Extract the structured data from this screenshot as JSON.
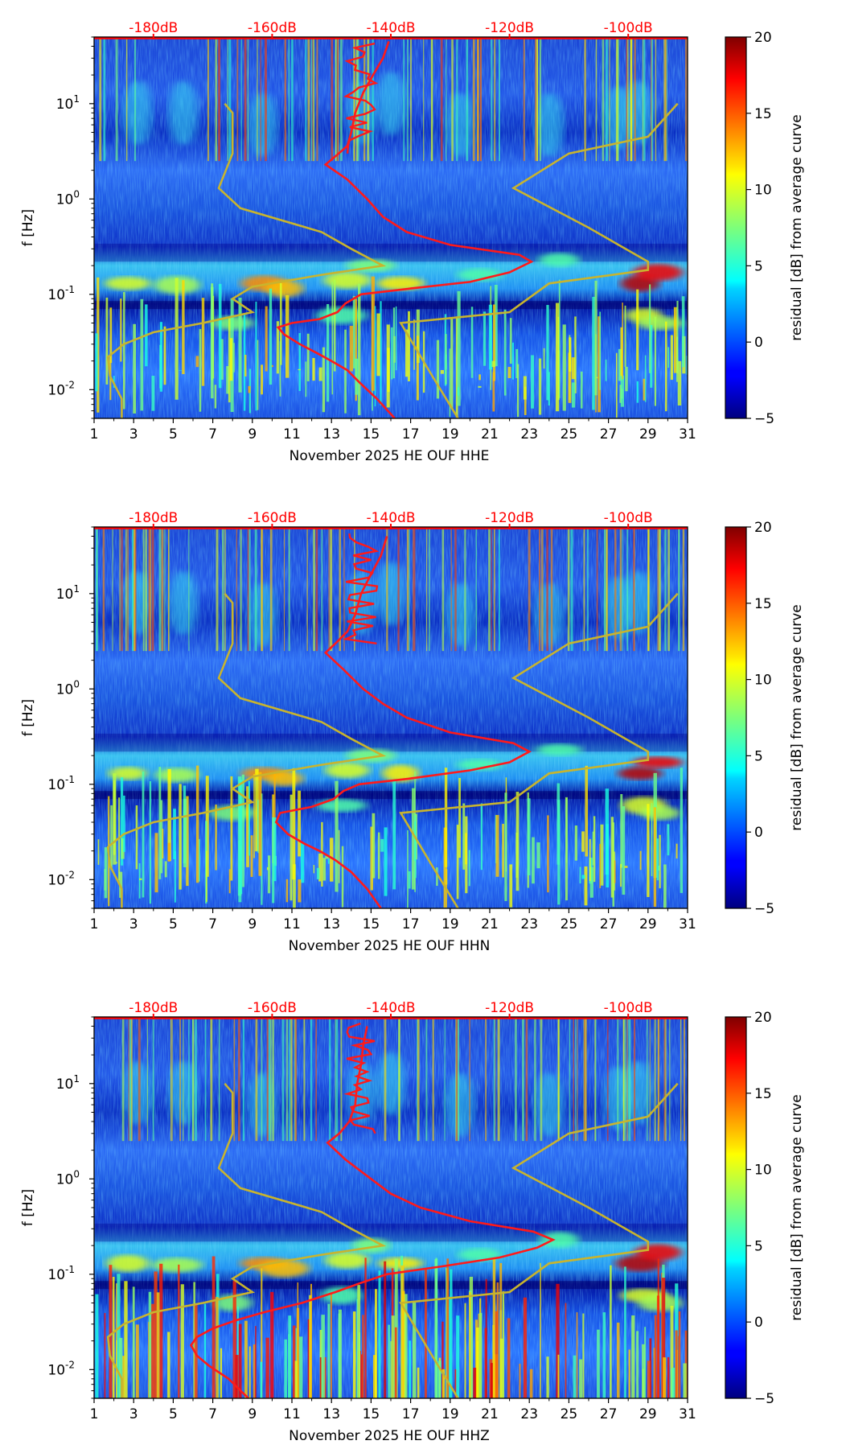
{
  "chart_data": [
    {
      "type": "heatmap",
      "id": "hhe",
      "xlabel": "November 2025 HE OUF  HHE",
      "ylabel": "f [Hz]",
      "x_ticks": [
        "1",
        "3",
        "5",
        "7",
        "9",
        "11",
        "13",
        "15",
        "17",
        "19",
        "21",
        "23",
        "25",
        "27",
        "29",
        "31"
      ],
      "y_ticks": [
        "10^-2",
        "10^-1",
        "10^0",
        "10^1"
      ],
      "db_ticks": [
        "-180dB",
        "-160dB",
        "-140dB",
        "-120dB",
        "-100dB"
      ],
      "colorbar_label": "residual [dB] from average curve",
      "colorbar_ticks": [
        "-5",
        "0",
        "5",
        "10",
        "15",
        "20"
      ],
      "xlim": [
        1,
        31
      ],
      "ylim": [
        0.005,
        50
      ],
      "clim": [
        -5,
        20
      ],
      "red_curve_peak_day": 23.1,
      "red_curve": [
        [
          16.2,
          0.005
        ],
        [
          15.3,
          0.008
        ],
        [
          14.4,
          0.012
        ],
        [
          13.8,
          0.016
        ],
        [
          13.0,
          0.02
        ],
        [
          12.3,
          0.024
        ],
        [
          11.4,
          0.03
        ],
        [
          10.6,
          0.038
        ],
        [
          10.3,
          0.045
        ],
        [
          11,
          0.05
        ],
        [
          12.4,
          0.055
        ],
        [
          13.3,
          0.065
        ],
        [
          13.7,
          0.08
        ],
        [
          14.5,
          0.1
        ],
        [
          17,
          0.115
        ],
        [
          20,
          0.135
        ],
        [
          22,
          0.17
        ],
        [
          23.1,
          0.22
        ],
        [
          22.5,
          0.26
        ],
        [
          19,
          0.33
        ],
        [
          16.8,
          0.45
        ],
        [
          15.6,
          0.65
        ],
        [
          14.8,
          1.0
        ],
        [
          13.8,
          1.6
        ],
        [
          12.7,
          2.3
        ],
        [
          13.2,
          2.8
        ],
        [
          13.8,
          3.6
        ],
        [
          14,
          5
        ],
        [
          14.2,
          8
        ],
        [
          14.6,
          13
        ],
        [
          15.1,
          20
        ],
        [
          15.6,
          30
        ],
        [
          15.9,
          45
        ]
      ],
      "yellow_curve_left": [
        [
          2.4,
          0.005
        ],
        [
          2.4,
          0.008
        ],
        [
          1.8,
          0.014
        ],
        [
          1.7,
          0.022
        ],
        [
          2.5,
          0.03
        ],
        [
          4,
          0.04
        ],
        [
          6.5,
          0.05
        ],
        [
          9,
          0.065
        ],
        [
          8,
          0.09
        ],
        [
          9,
          0.12
        ],
        [
          12.5,
          0.16
        ],
        [
          15.6,
          0.2
        ],
        [
          14,
          0.3
        ],
        [
          12.5,
          0.45
        ],
        [
          8.4,
          0.8
        ],
        [
          7.3,
          1.3
        ],
        [
          8,
          3
        ],
        [
          8,
          8
        ],
        [
          7.6,
          10
        ]
      ],
      "yellow_curve_right": [
        [
          19.4,
          0.005
        ],
        [
          18,
          0.015
        ],
        [
          16.5,
          0.05
        ],
        [
          22,
          0.065
        ],
        [
          24,
          0.13
        ],
        [
          29,
          0.18
        ],
        [
          29,
          0.22
        ],
        [
          26,
          0.5
        ],
        [
          22.2,
          1.3
        ],
        [
          25,
          3
        ],
        [
          29,
          4.5
        ],
        [
          30.5,
          10
        ]
      ]
    },
    {
      "type": "heatmap",
      "id": "hhn",
      "xlabel": "November 2025 HE OUF  HHN",
      "ylabel": "f [Hz]",
      "x_ticks": [
        "1",
        "3",
        "5",
        "7",
        "9",
        "11",
        "13",
        "15",
        "17",
        "19",
        "21",
        "23",
        "25",
        "27",
        "29",
        "31"
      ],
      "y_ticks": [
        "10^-2",
        "10^-1",
        "10^0",
        "10^1"
      ],
      "db_ticks": [
        "-180dB",
        "-160dB",
        "-140dB",
        "-120dB",
        "-100dB"
      ],
      "colorbar_label": "residual [dB] from average curve",
      "colorbar_ticks": [
        "-5",
        "0",
        "5",
        "10",
        "15",
        "20"
      ],
      "xlim": [
        1,
        31
      ],
      "ylim": [
        0.005,
        50
      ],
      "clim": [
        -5,
        20
      ],
      "red_curve_peak_day": 23.0,
      "red_curve": [
        [
          15.5,
          0.005
        ],
        [
          14.8,
          0.008
        ],
        [
          14,
          0.012
        ],
        [
          13.2,
          0.016
        ],
        [
          12.4,
          0.02
        ],
        [
          11.6,
          0.024
        ],
        [
          10.8,
          0.03
        ],
        [
          10.2,
          0.04
        ],
        [
          10.4,
          0.05
        ],
        [
          12,
          0.058
        ],
        [
          13.1,
          0.07
        ],
        [
          13.6,
          0.085
        ],
        [
          14.4,
          0.1
        ],
        [
          17,
          0.115
        ],
        [
          20,
          0.14
        ],
        [
          22,
          0.17
        ],
        [
          23,
          0.22
        ],
        [
          22.2,
          0.27
        ],
        [
          19,
          0.35
        ],
        [
          16.8,
          0.5
        ],
        [
          15.6,
          0.7
        ],
        [
          14.6,
          1.0
        ],
        [
          13.6,
          1.6
        ],
        [
          12.7,
          2.4
        ],
        [
          13.2,
          3
        ],
        [
          13.8,
          4
        ],
        [
          14.2,
          6
        ],
        [
          14.5,
          10
        ],
        [
          15,
          16
        ],
        [
          15.5,
          25
        ],
        [
          15.8,
          40
        ]
      ],
      "yellow_curve_left": [
        [
          2.4,
          0.005
        ],
        [
          2.4,
          0.008
        ],
        [
          1.8,
          0.014
        ],
        [
          1.7,
          0.022
        ],
        [
          2.5,
          0.03
        ],
        [
          4,
          0.04
        ],
        [
          6.5,
          0.05
        ],
        [
          9,
          0.065
        ],
        [
          8,
          0.09
        ],
        [
          9,
          0.12
        ],
        [
          12.5,
          0.16
        ],
        [
          15.6,
          0.2
        ],
        [
          14,
          0.3
        ],
        [
          12.5,
          0.45
        ],
        [
          8.4,
          0.8
        ],
        [
          7.3,
          1.3
        ],
        [
          8,
          3
        ],
        [
          8,
          8
        ],
        [
          7.6,
          10
        ]
      ],
      "yellow_curve_right": [
        [
          19.4,
          0.005
        ],
        [
          18,
          0.015
        ],
        [
          16.5,
          0.05
        ],
        [
          22,
          0.065
        ],
        [
          24,
          0.13
        ],
        [
          29,
          0.18
        ],
        [
          29,
          0.22
        ],
        [
          26,
          0.5
        ],
        [
          22.2,
          1.3
        ],
        [
          25,
          3
        ],
        [
          29,
          4.5
        ],
        [
          30.5,
          10
        ]
      ]
    },
    {
      "type": "heatmap",
      "id": "hhz",
      "xlabel": "November 2025 HE OUF  HHZ",
      "ylabel": "f [Hz]",
      "x_ticks": [
        "1",
        "3",
        "5",
        "7",
        "9",
        "11",
        "13",
        "15",
        "17",
        "19",
        "21",
        "23",
        "25",
        "27",
        "29",
        "31"
      ],
      "y_ticks": [
        "10^-2",
        "10^-1",
        "10^0",
        "10^1"
      ],
      "db_ticks": [
        "-180dB",
        "-160dB",
        "-140dB",
        "-120dB",
        "-100dB"
      ],
      "colorbar_label": "residual [dB] from average curve",
      "colorbar_ticks": [
        "-5",
        "0",
        "5",
        "10",
        "15",
        "20"
      ],
      "xlim": [
        1,
        31
      ],
      "ylim": [
        0.005,
        50
      ],
      "clim": [
        -5,
        20
      ],
      "red_curve_peak_day": 24.2,
      "red_curve": [
        [
          8.8,
          0.005
        ],
        [
          7.8,
          0.008
        ],
        [
          6.8,
          0.011
        ],
        [
          6.2,
          0.014
        ],
        [
          5.9,
          0.018
        ],
        [
          6.2,
          0.022
        ],
        [
          7,
          0.027
        ],
        [
          8.2,
          0.033
        ],
        [
          9.6,
          0.04
        ],
        [
          11.5,
          0.05
        ],
        [
          13.2,
          0.065
        ],
        [
          14.4,
          0.08
        ],
        [
          15.8,
          0.1
        ],
        [
          18.5,
          0.12
        ],
        [
          21.5,
          0.15
        ],
        [
          23.4,
          0.19
        ],
        [
          24.2,
          0.23
        ],
        [
          23.2,
          0.28
        ],
        [
          20,
          0.36
        ],
        [
          17.5,
          0.5
        ],
        [
          16,
          0.7
        ],
        [
          15,
          1.0
        ],
        [
          13.7,
          1.6
        ],
        [
          12.8,
          2.4
        ],
        [
          13.4,
          3
        ],
        [
          13.9,
          4
        ],
        [
          14.2,
          6
        ],
        [
          14.3,
          10
        ],
        [
          14.5,
          16
        ],
        [
          14.6,
          25
        ],
        [
          14.8,
          40
        ]
      ],
      "yellow_curve_left": [
        [
          2.4,
          0.005
        ],
        [
          2.4,
          0.008
        ],
        [
          1.8,
          0.014
        ],
        [
          1.7,
          0.022
        ],
        [
          2.5,
          0.03
        ],
        [
          4,
          0.04
        ],
        [
          6.5,
          0.05
        ],
        [
          9,
          0.065
        ],
        [
          8,
          0.09
        ],
        [
          9,
          0.12
        ],
        [
          12.5,
          0.16
        ],
        [
          15.6,
          0.2
        ],
        [
          14,
          0.3
        ],
        [
          12.5,
          0.45
        ],
        [
          8.4,
          0.8
        ],
        [
          7.3,
          1.3
        ],
        [
          8,
          3
        ],
        [
          8,
          8
        ],
        [
          7.6,
          10
        ]
      ],
      "yellow_curve_right": [
        [
          19.4,
          0.005
        ],
        [
          18,
          0.015
        ],
        [
          16.5,
          0.05
        ],
        [
          22,
          0.065
        ],
        [
          24,
          0.13
        ],
        [
          29,
          0.18
        ],
        [
          29,
          0.22
        ],
        [
          26,
          0.5
        ],
        [
          22.2,
          1.3
        ],
        [
          25,
          3
        ],
        [
          29,
          4.5
        ],
        [
          30.5,
          10
        ]
      ]
    }
  ]
}
